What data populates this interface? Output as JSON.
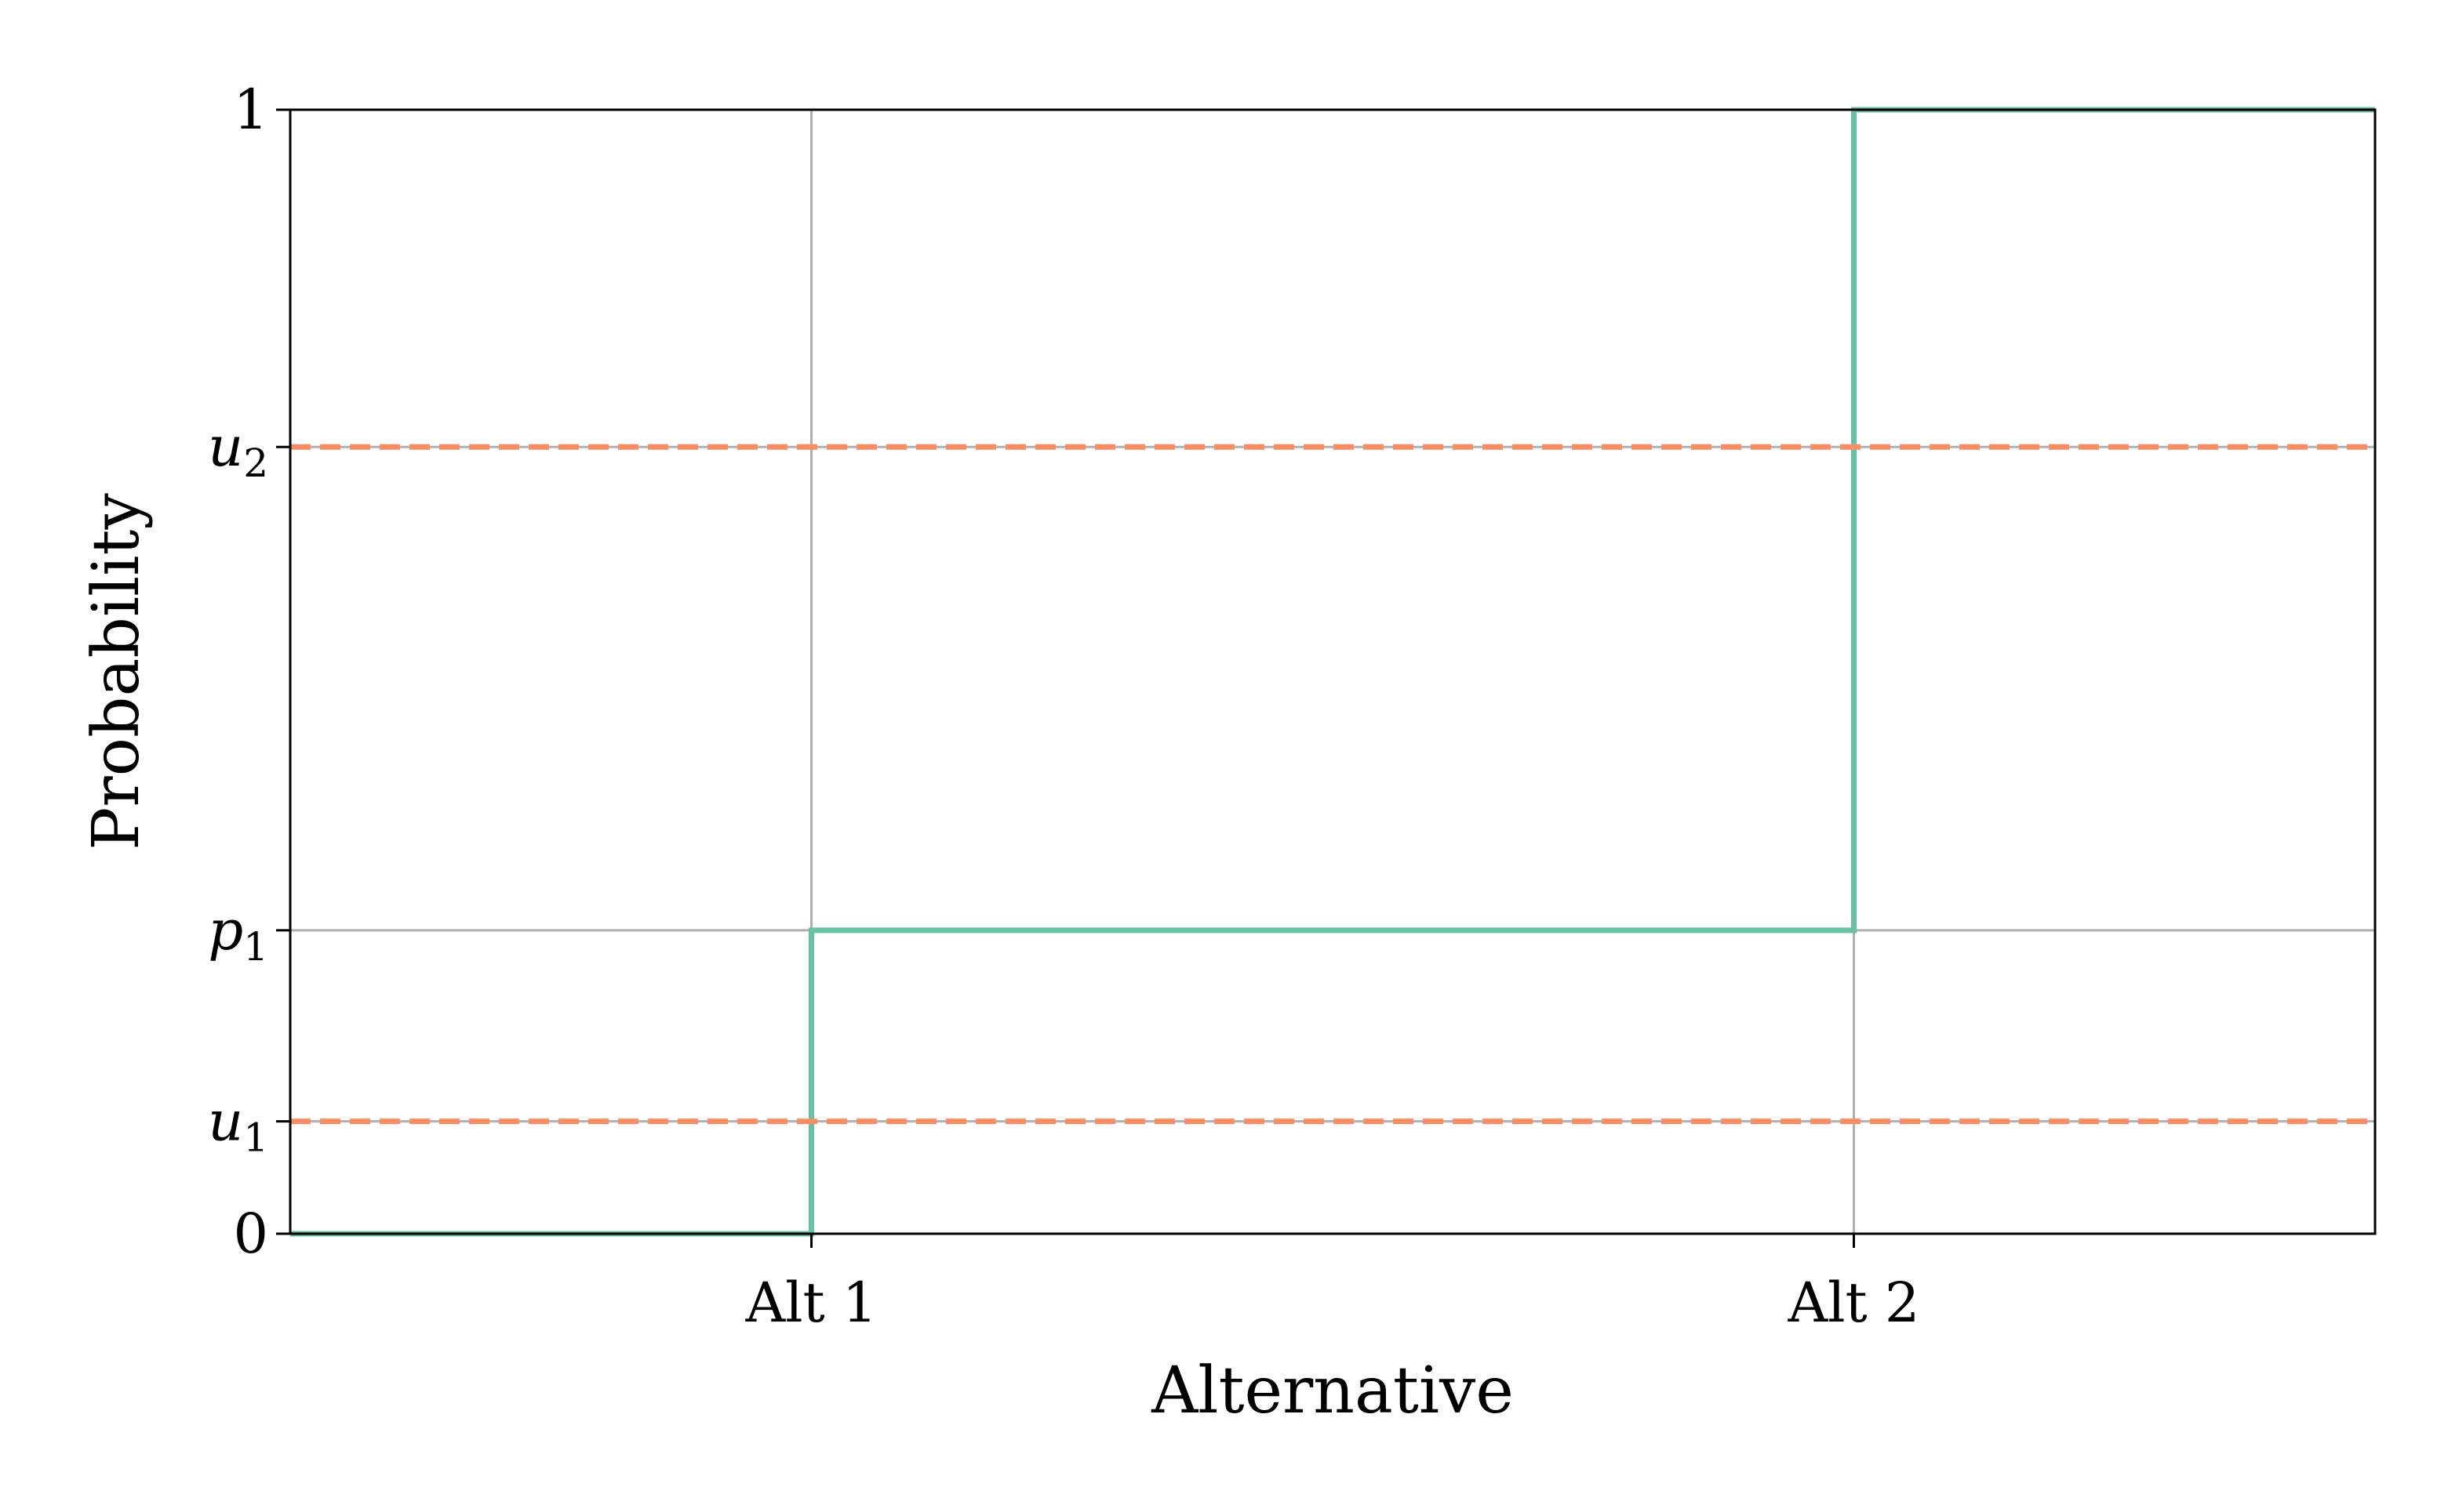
{
  "chart_data": {
    "type": "line",
    "title": "",
    "xlabel": "Alternative",
    "ylabel": "Probability",
    "xlim": [
      0,
      4
    ],
    "ylim": [
      0,
      1
    ],
    "x_ticks": [
      {
        "value": 1,
        "label": "Alt 1"
      },
      {
        "value": 3,
        "label": "Alt 2"
      }
    ],
    "y_ticks": [
      {
        "value": 0,
        "label": "0",
        "math": false
      },
      {
        "value": 0.1,
        "label": "u",
        "sub": "1",
        "math": true
      },
      {
        "value": 0.27,
        "label": "p",
        "sub": "1",
        "math": true
      },
      {
        "value": 0.7,
        "label": "u",
        "sub": "2",
        "math": true
      },
      {
        "value": 1,
        "label": "1",
        "math": false
      }
    ],
    "grid": true,
    "series": [
      {
        "style": "step",
        "color": "#66c2a5",
        "points": [
          [
            0,
            0
          ],
          [
            1,
            0
          ],
          [
            1,
            0.27
          ],
          [
            3,
            0.27
          ],
          [
            3,
            1
          ],
          [
            4,
            1
          ]
        ]
      }
    ],
    "hlines": [
      {
        "y": 0.1,
        "color": "#fc8d62",
        "style": "dashed"
      },
      {
        "y": 0.7,
        "color": "#fc8d62",
        "style": "dashed"
      }
    ],
    "colors": {
      "cdf_line": "#66c2a5",
      "threshold_line": "#fc8d62",
      "grid": "#b0b0b0",
      "axes": "#000000"
    }
  }
}
